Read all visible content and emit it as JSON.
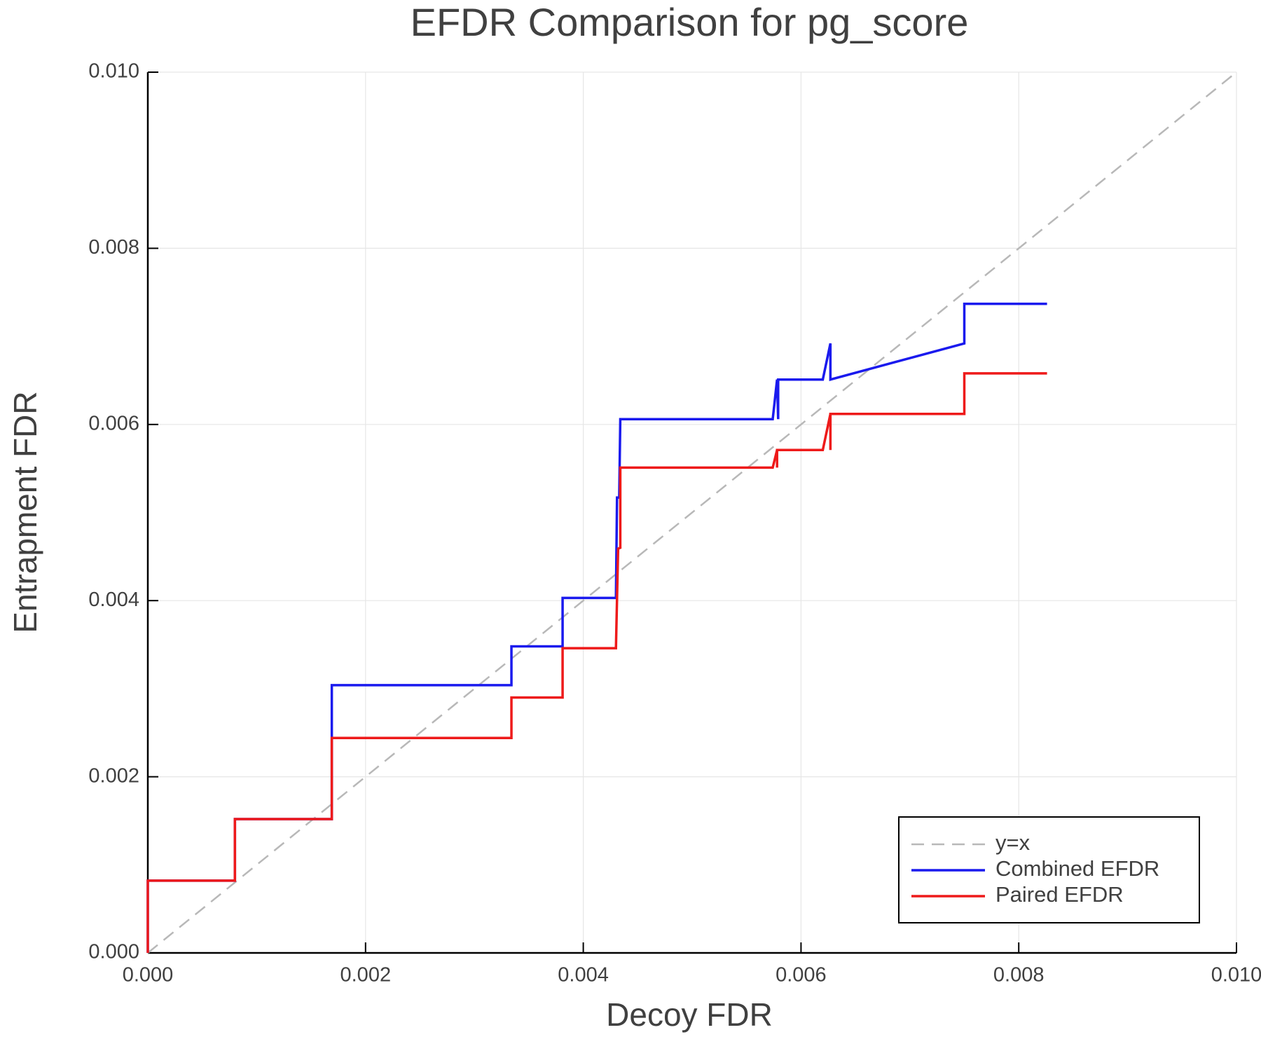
{
  "chart_data": {
    "type": "line",
    "title": "EFDR Comparison for pg_score",
    "x_label": "Decoy FDR",
    "y_label": "Entrapment FDR",
    "xlim": [
      0,
      0.01
    ],
    "ylim": [
      0,
      0.01
    ],
    "xticks": [
      {
        "value": 0,
        "label": "0.000"
      },
      {
        "value": 0.002,
        "label": "0.002"
      },
      {
        "value": 0.004,
        "label": "0.004"
      },
      {
        "value": 0.006,
        "label": "0.006"
      },
      {
        "value": 0.008,
        "label": "0.008"
      },
      {
        "value": 0.01,
        "label": "0.010"
      }
    ],
    "yticks": [
      {
        "value": 0,
        "label": "0.000"
      },
      {
        "value": 0.002,
        "label": "0.002"
      },
      {
        "value": 0.004,
        "label": "0.004"
      },
      {
        "value": 0.006,
        "label": "0.006"
      },
      {
        "value": 0.008,
        "label": "0.008"
      },
      {
        "value": 0.01,
        "label": "0.010"
      }
    ],
    "grid": true,
    "legend": "bottom-right",
    "series": [
      {
        "name": "y=x",
        "color": "#b8b8b8",
        "dash": true,
        "x": [
          0,
          0.01
        ],
        "values": [
          0,
          0.01
        ]
      },
      {
        "name": "Combined EFDR",
        "color": "#1a1aee",
        "dash": false,
        "x": [
          0,
          0,
          0.0008,
          0.0008,
          0.00169,
          0.00169,
          0.00334,
          0.00334,
          0.00381,
          0.00381,
          0.0043,
          0.00431,
          0.00433,
          0.00434,
          0.00574,
          0.00578,
          0.00579,
          0.00579,
          0.0062,
          0.00627,
          0.00627,
          0.0075,
          0.0075,
          0.00826
        ],
        "values": [
          0,
          0.00082,
          0.00082,
          0.00152,
          0.00152,
          0.00304,
          0.00304,
          0.00348,
          0.00348,
          0.00403,
          0.00403,
          0.00517,
          0.00517,
          0.00606,
          0.00606,
          0.00651,
          0.00606,
          0.00651,
          0.00651,
          0.00692,
          0.00651,
          0.00692,
          0.00737,
          0.00737
        ]
      },
      {
        "name": "Paired EFDR",
        "color": "#ee1a1a",
        "dash": false,
        "x": [
          0,
          0,
          0.0008,
          0.0008,
          0.00169,
          0.00169,
          0.00334,
          0.00334,
          0.00381,
          0.00381,
          0.0043,
          0.00432,
          0.00434,
          0.00434,
          0.00574,
          0.00578,
          0.00578,
          0.00578,
          0.0062,
          0.00627,
          0.00627,
          0.00627,
          0.0075,
          0.0075,
          0.00826
        ],
        "values": [
          0,
          0.00082,
          0.00082,
          0.00152,
          0.00152,
          0.00244,
          0.00244,
          0.0029,
          0.0029,
          0.00346,
          0.00346,
          0.00459,
          0.0046,
          0.00551,
          0.00551,
          0.00571,
          0.00551,
          0.00571,
          0.00571,
          0.00612,
          0.00571,
          0.00612,
          0.00612,
          0.00658,
          0.00658
        ]
      }
    ]
  }
}
